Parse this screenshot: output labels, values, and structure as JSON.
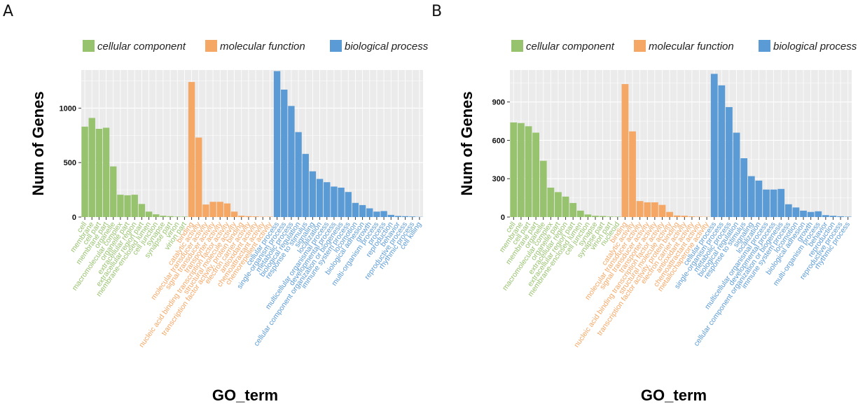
{
  "panel_labels": [
    "A",
    "B"
  ],
  "colors": {
    "cellular component": "#97c26e",
    "molecular function": "#f5a765",
    "biological process": "#5b9bd5",
    "panel_bg": "#ebebeb",
    "grid": "#ffffff"
  },
  "chart_data": [
    {
      "type": "bar",
      "panel": "A",
      "xlabel": "GO_term",
      "ylabel": "Num of Genes",
      "ylim": [
        0,
        1350
      ],
      "yticks": [
        0,
        500,
        1000
      ],
      "legend": [
        "cellular component",
        "molecular function",
        "biological process"
      ],
      "categories": [
        {
          "name": "cell",
          "group": "cellular component",
          "value": 830
        },
        {
          "name": "membrane",
          "group": "cellular component",
          "value": 910
        },
        {
          "name": "cell part",
          "group": "cellular component",
          "value": 810
        },
        {
          "name": "membrane part",
          "group": "cellular component",
          "value": 820
        },
        {
          "name": "organelle",
          "group": "cellular component",
          "value": 465
        },
        {
          "name": "macromolecular complex",
          "group": "cellular component",
          "value": 205
        },
        {
          "name": "organelle part",
          "group": "cellular component",
          "value": 200
        },
        {
          "name": "extracellular region",
          "group": "cellular component",
          "value": 205
        },
        {
          "name": "extracellular region part",
          "group": "cellular component",
          "value": 120
        },
        {
          "name": "membrane-enclosed lumen",
          "group": "cellular component",
          "value": 50
        },
        {
          "name": "cell junction",
          "group": "cellular component",
          "value": 25
        },
        {
          "name": "synapse",
          "group": "cellular component",
          "value": 12
        },
        {
          "name": "synapse part",
          "group": "cellular component",
          "value": 8
        },
        {
          "name": "virion",
          "group": "cellular component",
          "value": 4
        },
        {
          "name": "virion part",
          "group": "cellular component",
          "value": 4
        },
        {
          "name": "binding",
          "group": "molecular function",
          "value": 1240
        },
        {
          "name": "catalytic activity",
          "group": "molecular function",
          "value": 730
        },
        {
          "name": "molecular transducer activity",
          "group": "molecular function",
          "value": 115
        },
        {
          "name": "signal transducer activity",
          "group": "molecular function",
          "value": 140
        },
        {
          "name": "transporter activity",
          "group": "molecular function",
          "value": 140
        },
        {
          "name": "nucleic acid binding transcription factor activity",
          "group": "molecular function",
          "value": 125
        },
        {
          "name": "structural molecule activity",
          "group": "molecular function",
          "value": 50
        },
        {
          "name": "transcription factor activity, protein binding",
          "group": "molecular function",
          "value": 12
        },
        {
          "name": "electron carrier activity",
          "group": "molecular function",
          "value": 8
        },
        {
          "name": "antioxidant activity",
          "group": "molecular function",
          "value": 6
        },
        {
          "name": "chemoattractant activity",
          "group": "molecular function",
          "value": 3
        },
        {
          "name": "chemorepellent activity",
          "group": "molecular function",
          "value": 3
        },
        {
          "name": "cellular process",
          "group": "biological process",
          "value": 1340
        },
        {
          "name": "single-organism process",
          "group": "biological process",
          "value": 1170
        },
        {
          "name": "metabolic process",
          "group": "biological process",
          "value": 1020
        },
        {
          "name": "biological regulation",
          "group": "biological process",
          "value": 780
        },
        {
          "name": "response to stimulus",
          "group": "biological process",
          "value": 580
        },
        {
          "name": "signaling",
          "group": "biological process",
          "value": 420
        },
        {
          "name": "localization",
          "group": "biological process",
          "value": 350
        },
        {
          "name": "multicellular organismal process",
          "group": "biological process",
          "value": 320
        },
        {
          "name": "developmental process",
          "group": "biological process",
          "value": 280
        },
        {
          "name": "cellular component organization or biogenesis",
          "group": "biological process",
          "value": 270
        },
        {
          "name": "immune system process",
          "group": "biological process",
          "value": 230
        },
        {
          "name": "locomotion",
          "group": "biological process",
          "value": 130
        },
        {
          "name": "biological adhesion",
          "group": "biological process",
          "value": 110
        },
        {
          "name": "growth",
          "group": "biological process",
          "value": 80
        },
        {
          "name": "multi-organism process",
          "group": "biological process",
          "value": 50
        },
        {
          "name": "process",
          "group": "biological process",
          "value": 55
        },
        {
          "name": "reproduction",
          "group": "biological process",
          "value": 20
        },
        {
          "name": "behavior",
          "group": "biological process",
          "value": 10
        },
        {
          "name": "reproductive process",
          "group": "biological process",
          "value": 8
        },
        {
          "name": "rhythmic process",
          "group": "biological process",
          "value": 5
        },
        {
          "name": "cell killing",
          "group": "biological process",
          "value": 2
        }
      ]
    },
    {
      "type": "bar",
      "panel": "B",
      "xlabel": "GO_term",
      "ylabel": "Num of Genes",
      "ylim": [
        0,
        1150
      ],
      "yticks": [
        0,
        300,
        600,
        900
      ],
      "legend": [
        "cellular component",
        "molecular function",
        "biological process"
      ],
      "categories": [
        {
          "name": "cell",
          "group": "cellular component",
          "value": 740
        },
        {
          "name": "membrane",
          "group": "cellular component",
          "value": 735
        },
        {
          "name": "cell part",
          "group": "cellular component",
          "value": 710
        },
        {
          "name": "membrane part",
          "group": "cellular component",
          "value": 660
        },
        {
          "name": "organelle",
          "group": "cellular component",
          "value": 440
        },
        {
          "name": "macromolecular complex",
          "group": "cellular component",
          "value": 230
        },
        {
          "name": "organelle part",
          "group": "cellular component",
          "value": 195
        },
        {
          "name": "extracellular region",
          "group": "cellular component",
          "value": 160
        },
        {
          "name": "extracellular region part",
          "group": "cellular component",
          "value": 110
        },
        {
          "name": "membrane-enclosed lumen",
          "group": "cellular component",
          "value": 50
        },
        {
          "name": "cell junction",
          "group": "cellular component",
          "value": 20
        },
        {
          "name": "synapse",
          "group": "cellular component",
          "value": 10
        },
        {
          "name": "synapse part",
          "group": "cellular component",
          "value": 8
        },
        {
          "name": "virion part",
          "group": "cellular component",
          "value": 4
        },
        {
          "name": "nucleoid",
          "group": "cellular component",
          "value": 3
        },
        {
          "name": "binding",
          "group": "molecular function",
          "value": 1040
        },
        {
          "name": "catalytic activity",
          "group": "molecular function",
          "value": 670
        },
        {
          "name": "molecular transducer activity",
          "group": "molecular function",
          "value": 125
        },
        {
          "name": "signal transducer activity",
          "group": "molecular function",
          "value": 115
        },
        {
          "name": "transporter activity",
          "group": "molecular function",
          "value": 115
        },
        {
          "name": "nucleic acid binding transcription factor activity",
          "group": "molecular function",
          "value": 95
        },
        {
          "name": "structural molecule activity",
          "group": "molecular function",
          "value": 40
        },
        {
          "name": "transcription factor activity, protein binding",
          "group": "molecular function",
          "value": 12
        },
        {
          "name": "electron carrier activity",
          "group": "molecular function",
          "value": 10
        },
        {
          "name": "antioxidant activity",
          "group": "molecular function",
          "value": 5
        },
        {
          "name": "chemoattractant activity",
          "group": "molecular function",
          "value": 3
        },
        {
          "name": "metallochaperone activity",
          "group": "molecular function",
          "value": 2
        },
        {
          "name": "cellular process",
          "group": "biological process",
          "value": 1120
        },
        {
          "name": "single-organism process",
          "group": "biological process",
          "value": 1030
        },
        {
          "name": "metabolic process",
          "group": "biological process",
          "value": 860
        },
        {
          "name": "biological regulation",
          "group": "biological process",
          "value": 660
        },
        {
          "name": "response to stimulus",
          "group": "biological process",
          "value": 460
        },
        {
          "name": "signaling",
          "group": "biological process",
          "value": 320
        },
        {
          "name": "localization",
          "group": "biological process",
          "value": 285
        },
        {
          "name": "multicellular organismal process",
          "group": "biological process",
          "value": 215
        },
        {
          "name": "developmental process",
          "group": "biological process",
          "value": 215
        },
        {
          "name": "cellular component organization or biogenesis",
          "group": "biological process",
          "value": 220
        },
        {
          "name": "immune system process",
          "group": "biological process",
          "value": 100
        },
        {
          "name": "locomotion",
          "group": "biological process",
          "value": 75
        },
        {
          "name": "biological adhesion",
          "group": "biological process",
          "value": 50
        },
        {
          "name": "growth",
          "group": "biological process",
          "value": 40
        },
        {
          "name": "multi-organism process",
          "group": "biological process",
          "value": 45
        },
        {
          "name": "behavior",
          "group": "biological process",
          "value": 15
        },
        {
          "name": "reproduction",
          "group": "biological process",
          "value": 10
        },
        {
          "name": "reproductive process",
          "group": "biological process",
          "value": 6
        },
        {
          "name": "rhythmic process",
          "group": "biological process",
          "value": 3
        }
      ]
    }
  ]
}
